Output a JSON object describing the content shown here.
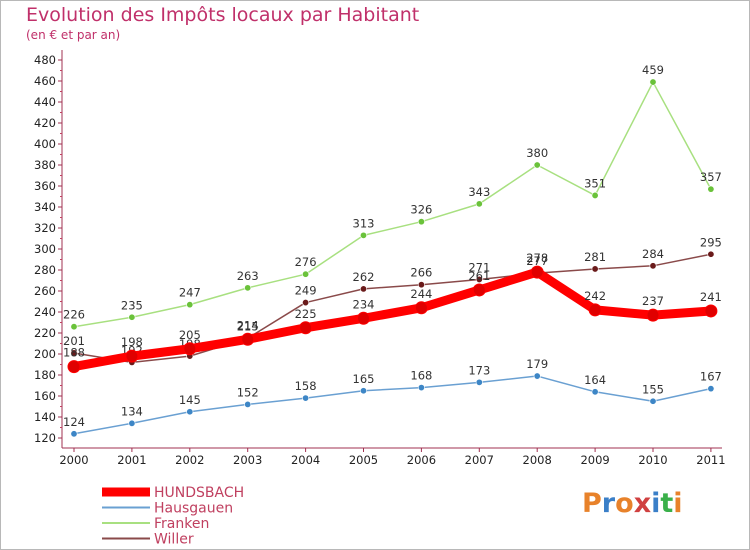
{
  "header": {
    "title": "Evolution des Impôts locaux par Habitant",
    "subtitle": "(en € et par an)"
  },
  "logo": {
    "text": "Proxiti",
    "colors": [
      "#e8822a",
      "#3a7fc8",
      "#e8822a",
      "#d04040",
      "#3a7fc8",
      "#3ab04a",
      "#e8822a"
    ]
  },
  "chart_data": {
    "type": "line",
    "x": [
      "2000",
      "2001",
      "2002",
      "2003",
      "2004",
      "2005",
      "2006",
      "2007",
      "2008",
      "2009",
      "2010",
      "2011"
    ],
    "ylim": [
      120,
      480
    ],
    "yticks": [
      120,
      140,
      160,
      180,
      200,
      220,
      240,
      260,
      280,
      300,
      320,
      340,
      360,
      380,
      400,
      420,
      440,
      460,
      480
    ],
    "grid": false,
    "legend": "bottom-left",
    "series": [
      {
        "name": "HUNDSBACH",
        "color": "#ff0000",
        "marker": "#e00000",
        "values": [
          188,
          198,
          205,
          214,
          225,
          234,
          244,
          261,
          278,
          242,
          237,
          241
        ]
      },
      {
        "name": "Hausgauen",
        "color": "#6aa0d2",
        "marker": "#3d86c6",
        "values": [
          124,
          134,
          145,
          152,
          158,
          165,
          168,
          173,
          179,
          164,
          155,
          167
        ]
      },
      {
        "name": "Franken",
        "color": "#a8e080",
        "marker": "#6ac23a",
        "values": [
          226,
          235,
          247,
          263,
          276,
          313,
          326,
          343,
          380,
          351,
          459,
          357
        ]
      },
      {
        "name": "Willer",
        "color": "#8a4a4a",
        "marker": "#6a1a1a",
        "values": [
          201,
          192,
          198,
          215,
          249,
          262,
          266,
          271,
          277,
          281,
          284,
          295
        ]
      }
    ]
  }
}
